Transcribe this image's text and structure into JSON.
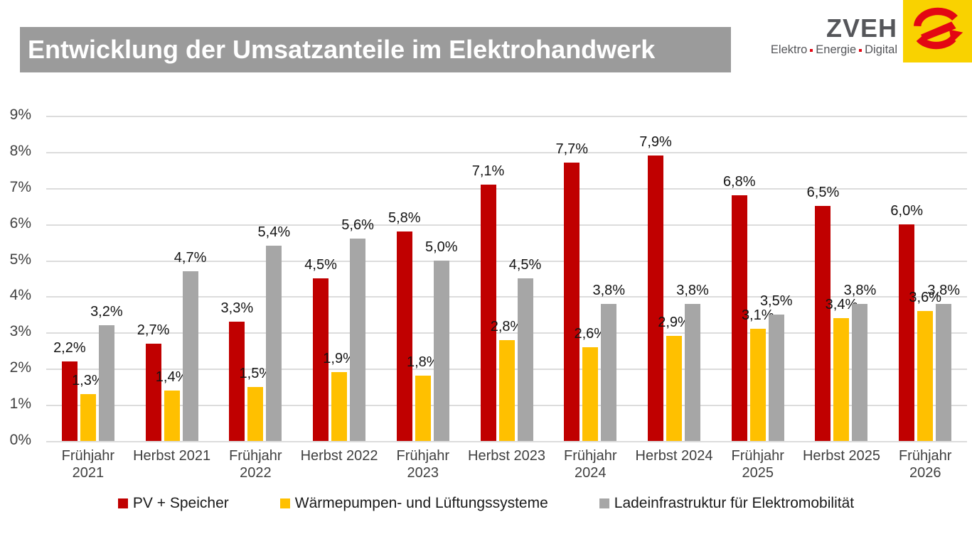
{
  "slide": {
    "title": "Entwicklung der Umsatzanteile im Elektrohandwerk"
  },
  "logo": {
    "brand": "ZVEH",
    "tagline": [
      "Elektro",
      "Energie",
      "Digital"
    ],
    "brand_color": "#55565A",
    "mark_bg": "#F9D200",
    "mark_color": "#E30613"
  },
  "chart_data": {
    "type": "bar",
    "title": "Entwicklung der Umsatzanteile im Elektrohandwerk",
    "categories": [
      "Frühjahr 2021",
      "Herbst 2021",
      "Frühjahr 2022",
      "Herbst 2022",
      "Frühjahr 2023",
      "Herbst 2023",
      "Frühjahr 2024",
      "Herbst 2024",
      "Frühjahr 2025",
      "Herbst 2025",
      "Frühjahr 2026"
    ],
    "series": [
      {
        "name": "PV + Speicher",
        "color": "#C00000",
        "values": [
          2.2,
          2.7,
          3.3,
          4.5,
          5.8,
          7.1,
          7.7,
          7.9,
          6.8,
          6.5,
          6.0
        ],
        "labels": [
          "2,2%",
          "2,7%",
          "3,3%",
          "4,5%",
          "5,8%",
          "7,1%",
          "7,7%",
          "7,9%",
          "6,8%",
          "6,5%",
          "6,0%"
        ]
      },
      {
        "name": "Wärmepumpen- und Lüftungssysteme",
        "color": "#FFC000",
        "values": [
          1.3,
          1.4,
          1.5,
          1.9,
          1.8,
          2.8,
          2.6,
          2.9,
          3.1,
          3.4,
          3.6
        ],
        "labels": [
          "1,3%",
          "1,4%",
          "1,5%",
          "1,9%",
          "1,8%",
          "2,8%",
          "2,6%",
          "2,9%",
          "3,1%",
          "3,4%",
          "3,6%"
        ]
      },
      {
        "name": "Ladeinfrastruktur für Elektromobilität",
        "color": "#A6A6A6",
        "values": [
          3.2,
          4.7,
          5.4,
          5.6,
          5.0,
          4.5,
          3.8,
          3.8,
          3.5,
          3.8,
          3.8
        ],
        "labels": [
          "3,2%",
          "4,7%",
          "5,4%",
          "5,6%",
          "5,0%",
          "4,5%",
          "3,8%",
          "3,8%",
          "3,5%",
          "3,8%",
          "3,8%"
        ]
      }
    ],
    "ylim": [
      0,
      9
    ],
    "yticks": [
      {
        "value": 0,
        "label": "0%"
      },
      {
        "value": 1,
        "label": "1%"
      },
      {
        "value": 2,
        "label": "2%"
      },
      {
        "value": 3,
        "label": "3%"
      },
      {
        "value": 4,
        "label": "4%"
      },
      {
        "value": 5,
        "label": "5%"
      },
      {
        "value": 6,
        "label": "6%"
      },
      {
        "value": 7,
        "label": "7%"
      },
      {
        "value": 8,
        "label": "8%"
      },
      {
        "value": 9,
        "label": "9%"
      }
    ],
    "grid": true,
    "legend_position": "bottom"
  }
}
